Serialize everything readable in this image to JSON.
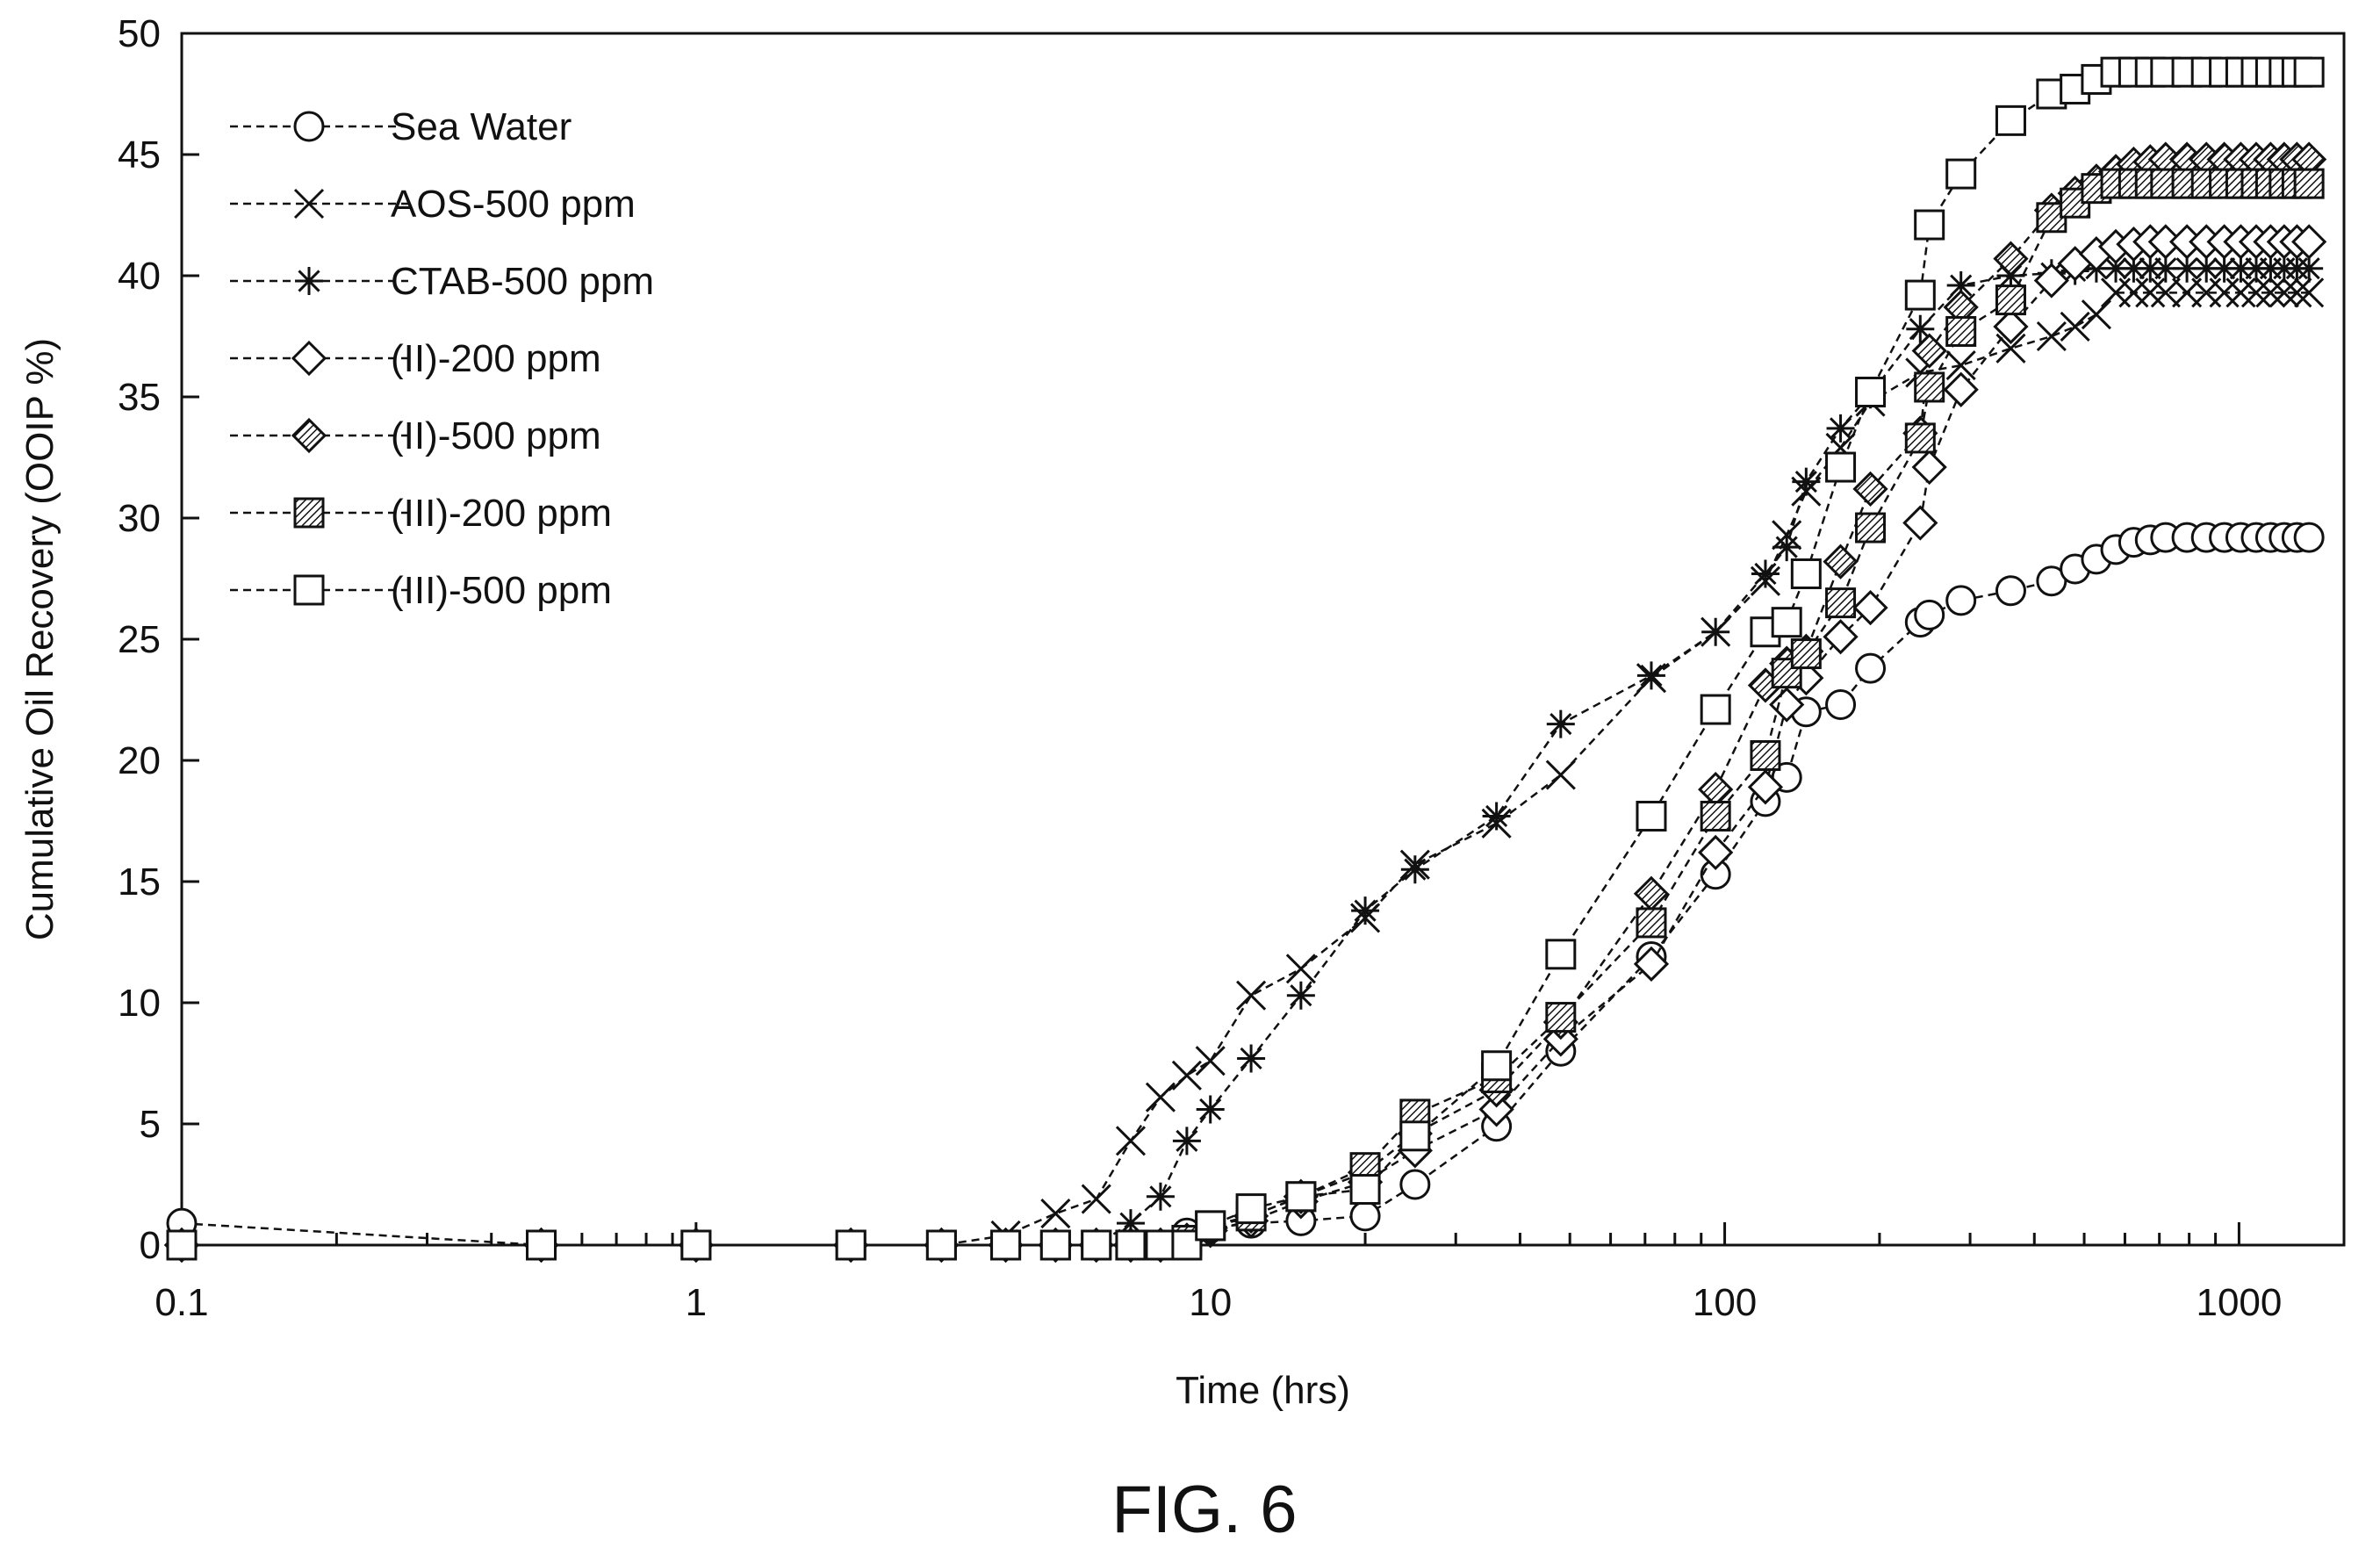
{
  "figure": {
    "caption": "FIG. 6"
  },
  "chart_data": {
    "type": "scatter",
    "x_scale": "log",
    "xlabel": "Time (hrs)",
    "ylabel": "Cumulative Oil Recovery (OOIP %)",
    "xlim": [
      0.1,
      1600
    ],
    "ylim": [
      0,
      50
    ],
    "x_ticks": [
      0.1,
      1,
      10,
      100,
      1000
    ],
    "x_tick_labels": [
      "0.1",
      "1",
      "10",
      "100",
      "1000"
    ],
    "y_ticks": [
      0,
      5,
      10,
      15,
      20,
      25,
      30,
      35,
      40,
      45,
      50
    ],
    "y_tick_labels": [
      "0",
      "5",
      "10",
      "15",
      "20",
      "25",
      "30",
      "35",
      "40",
      "45",
      "50"
    ],
    "grid": false,
    "legend_position": "top-left",
    "line_style": "dashed",
    "series": [
      {
        "name": "Sea Water",
        "marker": "circle",
        "x": [
          0.1,
          0.5,
          1,
          2,
          3,
          4,
          5,
          6,
          7,
          8,
          9,
          10,
          12,
          15,
          20,
          25,
          36,
          48,
          72,
          96,
          120,
          132,
          144,
          168,
          192,
          240,
          250,
          288,
          360,
          432,
          480,
          528,
          576,
          624,
          672,
          720,
          792,
          864,
          936,
          1008,
          1080,
          1152,
          1224,
          1296,
          1368
        ],
        "y": [
          0.9,
          0,
          0,
          0,
          0,
          0,
          0,
          0,
          0,
          0,
          0.5,
          0.7,
          0.9,
          1.0,
          1.2,
          2.5,
          4.9,
          8.0,
          11.9,
          15.3,
          18.3,
          19.3,
          22.0,
          22.3,
          23.8,
          25.7,
          26.0,
          26.6,
          27.0,
          27.4,
          27.9,
          28.3,
          28.7,
          29.0,
          29.1,
          29.2,
          29.2,
          29.2,
          29.2,
          29.2,
          29.2,
          29.2,
          29.2,
          29.2,
          29.2
        ]
      },
      {
        "name": "AOS-500 ppm",
        "marker": "x",
        "x": [
          0.1,
          0.5,
          1,
          2,
          3,
          4,
          5,
          6,
          7,
          8,
          9,
          10,
          12,
          15,
          20,
          25,
          36,
          48,
          72,
          96,
          120,
          132,
          144,
          168,
          192,
          240,
          288,
          360,
          432,
          480,
          528,
          576,
          624,
          672,
          720,
          792,
          864,
          936,
          1008,
          1080,
          1152,
          1224,
          1296,
          1368
        ],
        "y": [
          0,
          0,
          0,
          0,
          0,
          0.4,
          1.3,
          1.9,
          4.3,
          6.1,
          7.0,
          7.6,
          10.3,
          11.4,
          13.5,
          15.7,
          17.4,
          19.4,
          23.4,
          25.3,
          27.4,
          29.3,
          31.1,
          32.9,
          34.8,
          36.0,
          36.3,
          37.0,
          37.5,
          37.9,
          38.4,
          39.3,
          39.3,
          39.3,
          39.3,
          39.3,
          39.3,
          39.3,
          39.3,
          39.3,
          39.3,
          39.3,
          39.3,
          39.3
        ]
      },
      {
        "name": "CTAB-500 ppm",
        "marker": "asterisk",
        "x": [
          0.1,
          0.5,
          1,
          2,
          3,
          4,
          5,
          6,
          7,
          8,
          9,
          10,
          12,
          15,
          20,
          25,
          36,
          48,
          72,
          96,
          120,
          132,
          144,
          168,
          192,
          240,
          288,
          360,
          432,
          480,
          528,
          576,
          624,
          672,
          720,
          792,
          864,
          936,
          1008,
          1080,
          1152,
          1224,
          1296,
          1368
        ],
        "y": [
          0,
          0,
          0,
          0,
          0,
          0,
          0,
          0,
          0.9,
          2.0,
          4.3,
          5.6,
          7.7,
          10.3,
          13.8,
          15.5,
          17.7,
          21.5,
          23.5,
          25.3,
          27.7,
          28.8,
          31.5,
          33.7,
          35.1,
          37.8,
          39.6,
          40.0,
          40.1,
          40.2,
          40.3,
          40.3,
          40.3,
          40.3,
          40.3,
          40.3,
          40.3,
          40.3,
          40.3,
          40.3,
          40.3,
          40.3,
          40.3,
          40.3
        ]
      },
      {
        "name": "(II)-200 ppm",
        "marker": "diamond",
        "x": [
          0.1,
          0.5,
          1,
          2,
          3,
          4,
          5,
          6,
          7,
          8,
          9,
          10,
          12,
          15,
          20,
          25,
          36,
          48,
          72,
          96,
          120,
          132,
          144,
          168,
          192,
          240,
          250,
          288,
          360,
          432,
          480,
          528,
          576,
          624,
          672,
          720,
          792,
          864,
          936,
          1008,
          1080,
          1152,
          1224,
          1296,
          1368
        ],
        "y": [
          0,
          0,
          0,
          0,
          0,
          0,
          0,
          0,
          0,
          0,
          0.2,
          0.6,
          1.0,
          1.8,
          2.6,
          3.9,
          5.6,
          8.5,
          11.6,
          16.2,
          18.9,
          22.3,
          23.4,
          25.1,
          26.3,
          29.8,
          32.1,
          35.3,
          37.9,
          39.8,
          40.5,
          40.9,
          41.2,
          41.3,
          41.4,
          41.4,
          41.4,
          41.4,
          41.4,
          41.4,
          41.4,
          41.4,
          41.4,
          41.4,
          41.4
        ]
      },
      {
        "name": "(II)-500 ppm",
        "marker": "diamond-hatched",
        "x": [
          0.1,
          0.5,
          1,
          2,
          3,
          4,
          5,
          6,
          7,
          8,
          9,
          10,
          12,
          15,
          20,
          25,
          36,
          48,
          72,
          96,
          120,
          132,
          144,
          168,
          192,
          240,
          250,
          288,
          360,
          432,
          480,
          528,
          576,
          624,
          672,
          720,
          792,
          864,
          936,
          1008,
          1080,
          1152,
          1224,
          1296,
          1368
        ],
        "y": [
          0,
          0,
          0,
          0,
          0,
          0,
          0,
          0,
          0,
          0,
          0.2,
          0.7,
          1.2,
          2.0,
          3.0,
          4.6,
          6.4,
          9.2,
          14.5,
          18.8,
          23.1,
          24.0,
          24.5,
          28.2,
          31.2,
          33.5,
          36.9,
          38.7,
          40.7,
          42.7,
          43.4,
          43.9,
          44.3,
          44.6,
          44.7,
          44.8,
          44.8,
          44.8,
          44.8,
          44.8,
          44.8,
          44.8,
          44.8,
          44.8,
          44.8
        ]
      },
      {
        "name": "(III)-200 ppm",
        "marker": "square-hatched",
        "x": [
          0.1,
          0.5,
          1,
          2,
          3,
          4,
          5,
          6,
          7,
          8,
          9,
          10,
          12,
          15,
          20,
          25,
          36,
          48,
          72,
          96,
          120,
          132,
          144,
          168,
          192,
          240,
          250,
          288,
          360,
          432,
          480,
          528,
          576,
          624,
          672,
          720,
          792,
          864,
          936,
          1008,
          1080,
          1152,
          1224,
          1296,
          1368
        ],
        "y": [
          0,
          0,
          0,
          0,
          0,
          0,
          0,
          0,
          0,
          0,
          0.2,
          0.8,
          1.2,
          2.0,
          3.2,
          5.4,
          6.9,
          9.4,
          13.3,
          17.7,
          20.2,
          23.6,
          24.4,
          26.5,
          29.6,
          33.3,
          35.4,
          37.7,
          39.0,
          42.4,
          43.0,
          43.6,
          43.8,
          43.8,
          43.8,
          43.8,
          43.8,
          43.8,
          43.8,
          43.8,
          43.8,
          43.8,
          43.8,
          43.8,
          43.8
        ]
      },
      {
        "name": "(III)-500 ppm",
        "marker": "square",
        "x": [
          0.1,
          0.5,
          1,
          2,
          3,
          4,
          5,
          6,
          7,
          8,
          9,
          10,
          12,
          15,
          20,
          25,
          36,
          48,
          72,
          96,
          120,
          132,
          144,
          168,
          192,
          240,
          250,
          288,
          360,
          432,
          480,
          528,
          576,
          624,
          672,
          720,
          792,
          864,
          936,
          1008,
          1080,
          1152,
          1224,
          1296,
          1368
        ],
        "y": [
          0,
          0,
          0,
          0,
          0,
          0,
          0,
          0,
          0,
          0,
          0,
          0.8,
          1.5,
          2.0,
          2.3,
          4.5,
          7.4,
          12.0,
          17.7,
          22.1,
          25.3,
          25.7,
          27.7,
          32.1,
          35.2,
          39.2,
          42.1,
          44.2,
          46.4,
          47.5,
          47.7,
          48.1,
          48.4,
          48.4,
          48.4,
          48.4,
          48.4,
          48.4,
          48.4,
          48.4,
          48.4,
          48.4,
          48.4,
          48.4,
          48.4
        ]
      }
    ]
  }
}
